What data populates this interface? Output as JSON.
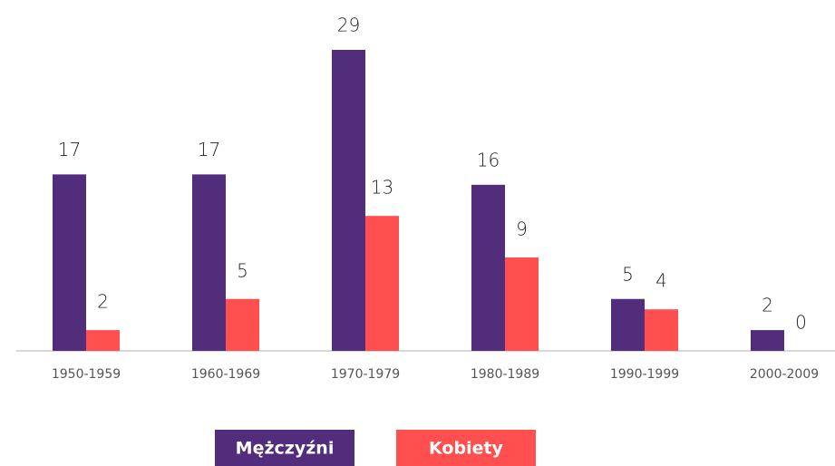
{
  "chart_data": {
    "type": "bar",
    "categories": [
      "1950-1959",
      "1960-1969",
      "1970-1979",
      "1980-1989",
      "1990-1999",
      "2000-2009"
    ],
    "series": [
      {
        "name": "Mężczyźni",
        "color": "#512d7c",
        "values": [
          17,
          17,
          29,
          16,
          5,
          2
        ]
      },
      {
        "name": "Kobiety",
        "color": "#ff4f4f",
        "values": [
          2,
          5,
          13,
          9,
          4,
          0
        ]
      }
    ],
    "grid": false,
    "legend": "bottom"
  }
}
